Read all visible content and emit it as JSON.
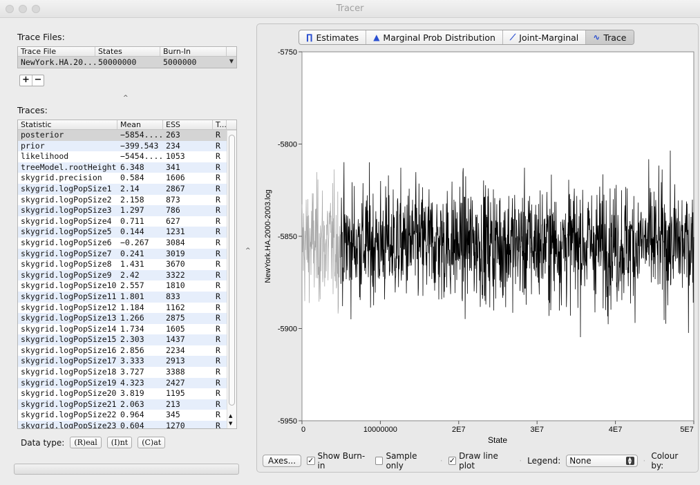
{
  "window": {
    "title": "Tracer"
  },
  "trace_files": {
    "label": "Trace Files:",
    "columns": [
      "Trace File",
      "States",
      "Burn-In"
    ],
    "rows": [
      [
        "NewYork.HA.20...",
        "50000000",
        "5000000"
      ]
    ],
    "add_label": "+",
    "remove_label": "−"
  },
  "traces": {
    "label": "Traces:",
    "columns": [
      "Statistic",
      "Mean",
      "ESS",
      "T..."
    ],
    "rows": [
      [
        "posterior",
        "−5854....",
        "263",
        "R"
      ],
      [
        "prior",
        "−399.543",
        "234",
        "R"
      ],
      [
        "likelihood",
        "−5454....",
        "1053",
        "R"
      ],
      [
        "treeModel.rootHeight",
        "6.348",
        "341",
        "R"
      ],
      [
        "skygrid.precision",
        "0.584",
        "1606",
        "R"
      ],
      [
        "skygrid.logPopSize1",
        "2.14",
        "2867",
        "R"
      ],
      [
        "skygrid.logPopSize2",
        "2.158",
        "873",
        "R"
      ],
      [
        "skygrid.logPopSize3",
        "1.297",
        "786",
        "R"
      ],
      [
        "skygrid.logPopSize4",
        "0.711",
        "627",
        "R"
      ],
      [
        "skygrid.logPopSize5",
        "0.144",
        "1231",
        "R"
      ],
      [
        "skygrid.logPopSize6",
        "−0.267",
        "3084",
        "R"
      ],
      [
        "skygrid.logPopSize7",
        "0.241",
        "3019",
        "R"
      ],
      [
        "skygrid.logPopSize8",
        "1.431",
        "3670",
        "R"
      ],
      [
        "skygrid.logPopSize9",
        "2.42",
        "3322",
        "R"
      ],
      [
        "skygrid.logPopSize10",
        "2.557",
        "1810",
        "R"
      ],
      [
        "skygrid.logPopSize11",
        "1.801",
        "833",
        "R"
      ],
      [
        "skygrid.logPopSize12",
        "1.184",
        "1162",
        "R"
      ],
      [
        "skygrid.logPopSize13",
        "1.266",
        "2875",
        "R"
      ],
      [
        "skygrid.logPopSize14",
        "1.734",
        "1605",
        "R"
      ],
      [
        "skygrid.logPopSize15",
        "2.303",
        "1437",
        "R"
      ],
      [
        "skygrid.logPopSize16",
        "2.856",
        "2234",
        "R"
      ],
      [
        "skygrid.logPopSize17",
        "3.333",
        "2913",
        "R"
      ],
      [
        "skygrid.logPopSize18",
        "3.727",
        "3388",
        "R"
      ],
      [
        "skygrid.logPopSize19",
        "4.323",
        "2427",
        "R"
      ],
      [
        "skygrid.logPopSize20",
        "3.819",
        "1195",
        "R"
      ],
      [
        "skygrid.logPopSize21",
        "2.063",
        "213",
        "R"
      ],
      [
        "skygrid.logPopSize22",
        "0.964",
        "345",
        "R"
      ],
      [
        "skygrid.logPopSize23",
        "0.604",
        "1270",
        "R"
      ]
    ],
    "selected_index": 0
  },
  "data_type": {
    "label": "Data type:",
    "buttons": [
      "(R)eal",
      "(I)nt",
      "(C)at"
    ]
  },
  "tabs": [
    {
      "label": "Estimates",
      "icon": "estimates-icon",
      "glyph": "∏"
    },
    {
      "label": "Marginal Prob Distribution",
      "icon": "marginal-icon",
      "glyph": "▲"
    },
    {
      "label": "Joint-Marginal",
      "icon": "joint-marginal-icon",
      "glyph": "⟋"
    },
    {
      "label": "Trace",
      "icon": "trace-icon",
      "glyph": "∿"
    }
  ],
  "active_tab": "Trace",
  "bottom_bar": {
    "axes_label": "Axes...",
    "show_burnin_label": "Show Burn-in",
    "show_burnin_checked": true,
    "sample_only_label": "Sample only",
    "sample_only_checked": false,
    "draw_line_label": "Draw line plot",
    "draw_line_checked": true,
    "legend_label": "Legend:",
    "legend_value": "None",
    "colour_by_label": "Colour by:"
  },
  "chart_data": {
    "type": "line",
    "title": "",
    "xlabel": "State",
    "ylabel": "NewYork.HA.2000-2003.log",
    "xlim": [
      0,
      50000000
    ],
    "ylim": [
      -5950,
      -5750
    ],
    "x_ticks": [
      "0",
      "10000000",
      "2E7",
      "3E7",
      "4E7",
      "5E7"
    ],
    "y_ticks": [
      "-5750",
      "-5800",
      "-5850",
      "-5900",
      "-5950"
    ],
    "burn_in": 5000000,
    "mean": -5854,
    "series": [
      {
        "values_note": "",
        "burnin_color": "#a8a8a8",
        "color": "#000000"
      }
    ],
    "grid": false,
    "legend": "none"
  }
}
